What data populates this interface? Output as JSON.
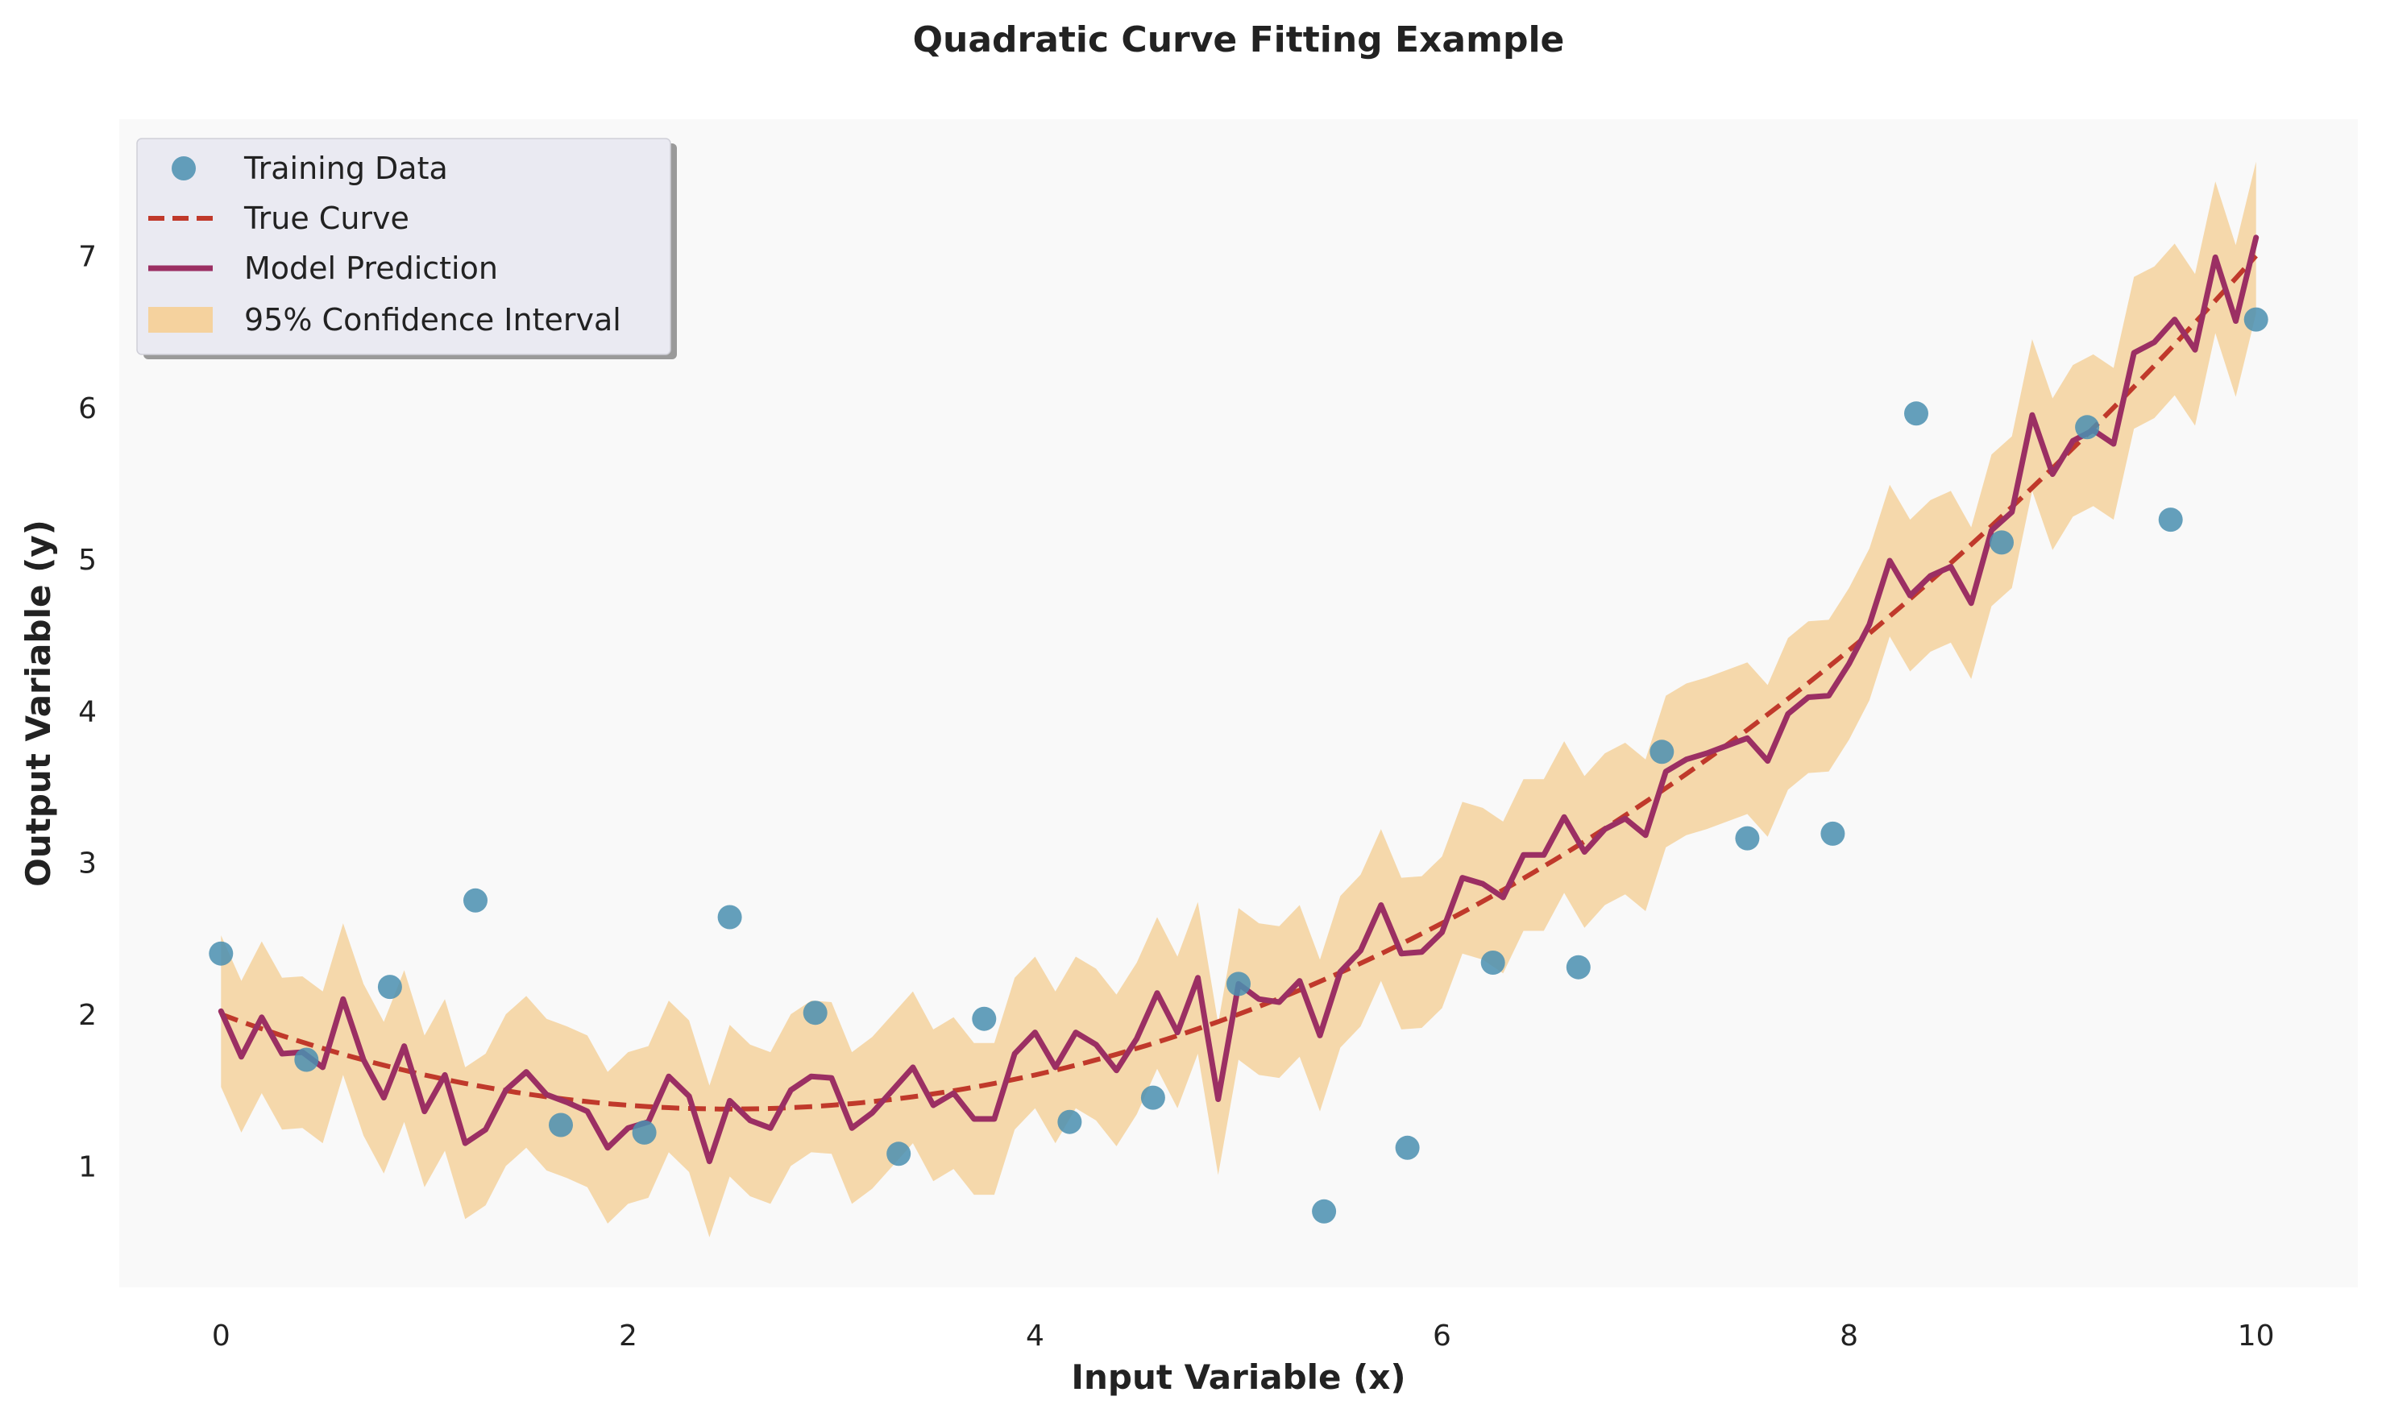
{
  "chart_data": {
    "type": "line",
    "title": "Quadratic Curve Fitting Example",
    "xlabel": "Input Variable (x)",
    "ylabel": "Output Variable (y)",
    "xlim": [
      -0.5,
      10.5
    ],
    "ylim": [
      0.2,
      7.9
    ],
    "xticks": [
      0,
      2,
      4,
      6,
      8,
      10
    ],
    "yticks": [
      1,
      2,
      3,
      4,
      5,
      6,
      7
    ],
    "grid": false,
    "legend_position": "top-left",
    "colors": {
      "plot_background": "#f9f9f9",
      "training": "#4a8fb0",
      "true_curve": "#c0392b",
      "model": "#9b2f63",
      "confidence": "#f5d29e",
      "legend_background": "#eaeaf2"
    },
    "legend": [
      {
        "label": "Training Data",
        "kind": "scatter"
      },
      {
        "label": "True Curve",
        "kind": "dashed"
      },
      {
        "label": "Model Prediction",
        "kind": "line"
      },
      {
        "label": "95% Confidence Interval",
        "kind": "band"
      }
    ],
    "true_curve": {
      "name": "True Curve",
      "equation": "y = 0.1*x^2 - 0.5*x + 2",
      "x_range": [
        0,
        10
      ]
    },
    "training_data": {
      "name": "Training Data",
      "x": [
        0.0,
        0.42,
        0.83,
        1.25,
        1.67,
        2.08,
        2.5,
        2.92,
        3.33,
        3.75,
        4.17,
        4.58,
        5.0,
        5.42,
        5.83,
        6.25,
        6.67,
        7.08,
        7.5,
        7.92,
        8.33,
        8.75,
        9.17,
        9.58,
        10.0
      ],
      "y": [
        2.4,
        1.7,
        2.18,
        2.75,
        1.27,
        1.22,
        2.64,
        2.01,
        1.08,
        1.97,
        1.29,
        1.45,
        2.2,
        0.7,
        1.12,
        2.34,
        2.31,
        3.73,
        3.16,
        3.19,
        5.96,
        5.11,
        5.87,
        5.26,
        6.58
      ]
    },
    "model_prediction": {
      "name": "Model Prediction",
      "x": [
        0.0,
        0.1,
        0.2,
        0.3,
        0.4,
        0.5,
        0.6,
        0.7,
        0.8,
        0.9,
        1.0,
        1.1,
        1.2,
        1.3,
        1.4,
        1.5,
        1.6,
        1.7,
        1.8,
        1.9,
        2.0,
        2.1,
        2.2,
        2.3,
        2.4,
        2.5,
        2.6,
        2.7,
        2.8,
        2.9,
        3.0,
        3.1,
        3.2,
        3.3,
        3.4,
        3.5,
        3.6,
        3.7,
        3.8,
        3.9,
        4.0,
        4.1,
        4.2,
        4.3,
        4.4,
        4.5,
        4.6,
        4.7,
        4.8,
        4.9,
        5.0,
        5.1,
        5.2,
        5.3,
        5.4,
        5.5,
        5.6,
        5.7,
        5.8,
        5.9,
        6.0,
        6.1,
        6.2,
        6.3,
        6.4,
        6.5,
        6.6,
        6.7,
        6.8,
        6.9,
        7.0,
        7.1,
        7.2,
        7.3,
        7.4,
        7.5,
        7.6,
        7.7,
        7.8,
        7.9,
        8.0,
        8.1,
        8.2,
        8.3,
        8.4,
        8.5,
        8.6,
        8.7,
        8.8,
        8.9,
        9.0,
        9.1,
        9.2,
        9.3,
        9.4,
        9.5,
        9.6,
        9.7,
        9.8,
        9.9,
        10.0
      ],
      "y": [
        2.02,
        1.72,
        1.98,
        1.74,
        1.75,
        1.65,
        2.1,
        1.7,
        1.45,
        1.79,
        1.36,
        1.6,
        1.15,
        1.24,
        1.5,
        1.62,
        1.47,
        1.42,
        1.36,
        1.12,
        1.25,
        1.29,
        1.59,
        1.46,
        1.03,
        1.43,
        1.3,
        1.25,
        1.5,
        1.59,
        1.58,
        1.25,
        1.35,
        1.5,
        1.65,
        1.4,
        1.48,
        1.31,
        1.31,
        1.74,
        1.88,
        1.65,
        1.88,
        1.8,
        1.63,
        1.84,
        2.14,
        1.88,
        2.24,
        1.44,
        2.2,
        2.1,
        2.08,
        2.22,
        1.86,
        2.28,
        2.42,
        2.72,
        2.4,
        2.41,
        2.54,
        2.9,
        2.86,
        2.77,
        3.05,
        3.05,
        3.3,
        3.07,
        3.22,
        3.29,
        3.18,
        3.6,
        3.68,
        3.72,
        3.77,
        3.82,
        3.67,
        3.98,
        4.09,
        4.1,
        4.31,
        4.57,
        4.99,
        4.76,
        4.89,
        4.95,
        4.71,
        5.19,
        5.31,
        5.95,
        5.56,
        5.78,
        5.85,
        5.76,
        6.36,
        6.43,
        6.58,
        6.38,
        6.99,
        6.57,
        7.12
      ]
    },
    "confidence_interval": {
      "name": "95% Confidence Interval",
      "half_width_low_x": 0.5,
      "half_width_high_x": 0.5
    }
  }
}
